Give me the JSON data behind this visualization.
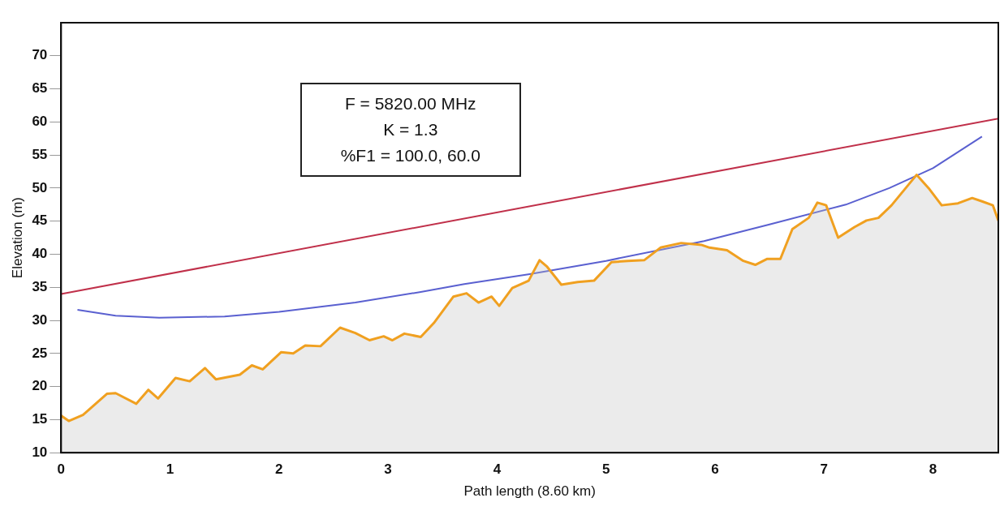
{
  "chart_data": {
    "type": "line",
    "xlabel": "Path length (8.60 km)",
    "ylabel": "Elevation (m)",
    "annotations": [
      "F = 5820.00 MHz",
      "K = 1.3",
      "%F1 = 100.0, 60.0"
    ],
    "xlim": [
      0,
      8.6
    ],
    "xticks": [
      0,
      1,
      2,
      3,
      4,
      5,
      6,
      7,
      8
    ],
    "ylim": [
      10,
      75
    ],
    "yticks": [
      10,
      15,
      20,
      25,
      30,
      35,
      40,
      45,
      50,
      55,
      60,
      65,
      70
    ],
    "grid": false,
    "legend": false,
    "marker": "none",
    "series": [
      {
        "type": "area",
        "color": "#f0a020",
        "x": [
          0,
          0.07,
          0.2,
          0.42,
          0.5,
          0.69,
          0.8,
          0.89,
          1.05,
          1.18,
          1.32,
          1.42,
          1.64,
          1.75,
          1.85,
          2.02,
          2.13,
          2.24,
          2.38,
          2.56,
          2.7,
          2.83,
          2.96,
          3.04,
          3.15,
          3.3,
          3.42,
          3.6,
          3.72,
          3.83,
          3.95,
          4.02,
          4.14,
          4.29,
          4.39,
          4.46,
          4.59,
          4.74,
          4.89,
          5.05,
          5.2,
          5.35,
          5.5,
          5.69,
          5.88,
          5.95,
          6.11,
          6.26,
          6.37,
          6.48,
          6.6,
          6.71,
          6.86,
          6.94,
          7.02,
          7.13,
          7.28,
          7.39,
          7.5,
          7.62,
          7.85,
          7.96,
          8.08,
          8.23,
          8.36,
          8.45,
          8.55,
          8.6
        ],
        "values": [
          15.6,
          14.8,
          15.7,
          18.9,
          19.0,
          17.4,
          19.5,
          18.2,
          21.3,
          20.8,
          22.8,
          21.1,
          21.8,
          23.2,
          22.6,
          25.2,
          25.0,
          26.2,
          26.1,
          28.9,
          28.1,
          27.0,
          27.6,
          27.0,
          28.0,
          27.5,
          29.6,
          33.6,
          34.1,
          32.7,
          33.6,
          32.2,
          34.9,
          36.0,
          39.1,
          38.1,
          35.4,
          35.8,
          36.0,
          38.8,
          39.0,
          39.1,
          41.0,
          41.7,
          41.4,
          41.0,
          40.6,
          39.0,
          38.4,
          39.3,
          39.3,
          43.8,
          45.5,
          47.8,
          47.4,
          42.5,
          44.1,
          45.1,
          45.5,
          47.4,
          52.0,
          50.0,
          47.4,
          47.7,
          48.5,
          48.0,
          47.4,
          45.1
        ]
      },
      {
        "type": "line",
        "color": "#c0304a",
        "x": [
          0,
          8.6
        ],
        "values": [
          34,
          60.5
        ]
      },
      {
        "type": "line",
        "color": "#5a60d0",
        "x": [
          0.15,
          0.5,
          0.9,
          1.5,
          2,
          2.7,
          3.3,
          3.7,
          4.3,
          5,
          5.9,
          6.5,
          7.2,
          7.6,
          8,
          8.45
        ],
        "values": [
          31.6,
          30.7,
          30.4,
          30.6,
          31.3,
          32.7,
          34.3,
          35.5,
          37,
          39,
          42,
          44.5,
          47.5,
          50,
          53,
          57.8
        ]
      }
    ]
  }
}
